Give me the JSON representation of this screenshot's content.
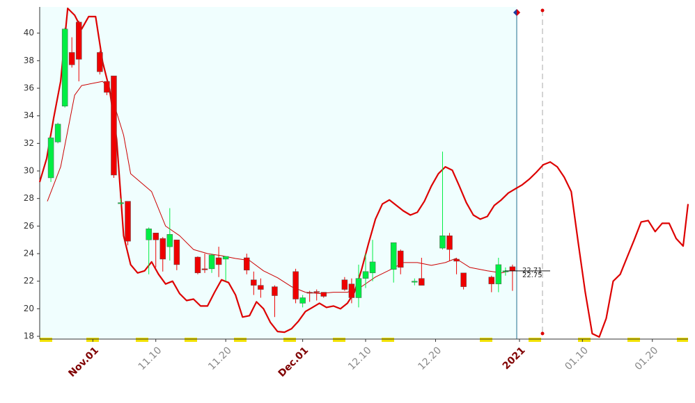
{
  "chart_data": {
    "type": "candlestick",
    "x": [
      -6,
      -5,
      -4,
      -3,
      -2,
      1,
      2,
      3,
      4,
      5,
      8,
      9,
      10,
      11,
      12,
      15,
      16,
      17,
      18,
      19,
      22,
      23,
      24,
      26,
      29,
      30,
      31,
      32,
      33,
      36,
      37,
      38,
      39,
      40,
      43,
      44,
      46,
      47,
      50,
      51,
      52,
      53,
      57,
      58,
      59,
      60
    ],
    "open": [
      29.5,
      32.1,
      34.7,
      38.6,
      40.8,
      38.6,
      36.5,
      36.9,
      27.7,
      27.8,
      25.0,
      25.5,
      25.1,
      24.5,
      25.0,
      23.75,
      22.9,
      22.9,
      23.7,
      23.6,
      23.7,
      22.1,
      21.7,
      21.6,
      22.7,
      20.4,
      21.2,
      21.25,
      21.2,
      22.1,
      21.8,
      20.8,
      22.2,
      22.6,
      22.85,
      24.2,
      22.0,
      22.2,
      24.4,
      25.3,
      23.6,
      22.6,
      22.3,
      21.8,
      22.7,
      23.05
    ],
    "high": [
      32.5,
      33.5,
      40.4,
      39.7,
      40.9,
      38.7,
      36.5,
      36.9,
      28.0,
      27.8,
      25.9,
      25.5,
      25.2,
      27.3,
      25.0,
      23.8,
      24.0,
      24.0,
      24.5,
      23.8,
      24.0,
      22.7,
      22.2,
      21.7,
      22.9,
      21.0,
      21.3,
      21.4,
      21.2,
      22.3,
      22.2,
      23.2,
      24.0,
      25.0,
      24.8,
      24.3,
      22.2,
      23.7,
      31.4,
      25.5,
      23.7,
      22.6,
      22.4,
      23.7,
      23.0,
      23.2
    ],
    "low": [
      29.2,
      32.0,
      34.6,
      37.5,
      36.5,
      37.0,
      35.5,
      29.5,
      27.5,
      24.6,
      22.5,
      23.0,
      22.7,
      23.5,
      22.8,
      22.5,
      22.6,
      22.6,
      22.3,
      22.0,
      22.5,
      21.0,
      20.8,
      19.4,
      20.4,
      20.1,
      20.5,
      20.6,
      20.8,
      21.3,
      20.4,
      20.1,
      21.5,
      22.0,
      21.9,
      22.5,
      21.7,
      21.7,
      24.3,
      23.5,
      22.5,
      21.4,
      21.2,
      21.2,
      22.4,
      21.3
    ],
    "close": [
      32.4,
      33.4,
      40.3,
      37.7,
      38.1,
      37.2,
      35.7,
      29.7,
      27.7,
      24.9,
      25.8,
      25.0,
      23.6,
      25.4,
      23.2,
      22.6,
      22.85,
      23.9,
      23.2,
      23.8,
      22.8,
      21.7,
      21.4,
      20.95,
      20.7,
      20.8,
      21.15,
      21.2,
      20.9,
      21.4,
      20.8,
      22.2,
      22.7,
      23.4,
      24.8,
      23.0,
      22.0,
      21.7,
      25.3,
      24.3,
      23.45,
      21.6,
      21.8,
      23.2,
      22.75,
      22.75
    ],
    "up_color": "#00ee44",
    "down_color": "#ee0000",
    "lines": [
      {
        "color": "#dd0000",
        "x": [
          -7.6,
          -6.6,
          -5.6,
          -4.6,
          -3.6,
          -2.6,
          -1.6,
          -0.6,
          0.4,
          1.4,
          2.4,
          3.4,
          4.4,
          5.4,
          6.4,
          7.4,
          8.4,
          9.4,
          10.4,
          11.4,
          12.4,
          13.4,
          14.4,
          15.4,
          16.4,
          17.4,
          18.4,
          19.4,
          20.4,
          21.4,
          22.4,
          23.4,
          24.4,
          25.4,
          26.4,
          27.4,
          28.4,
          29.4,
          30.4,
          31.4,
          32.4,
          33.4,
          34.4,
          35.4,
          36.4,
          37.4,
          38.4,
          39.4,
          40.4,
          41.4,
          42.4,
          43.4,
          44.4,
          45.4,
          46.4,
          47.4,
          48.4,
          49.4,
          50.4,
          51.4,
          52.4,
          53.4,
          54.4,
          55.4,
          56.4,
          57.4,
          58.4,
          59.4,
          60.4,
          61.4,
          62.4,
          63.4,
          64.4,
          65.4,
          66.4,
          67.4,
          68.4,
          69.4,
          70.4,
          71.4,
          72.4,
          73.4,
          74.4,
          75.4,
          76.4,
          77.4,
          78.4,
          79.4,
          80.4,
          81.4,
          82.4,
          83.4,
          84.4,
          85.1
        ],
        "values": [
          29.2,
          30.9,
          33.85,
          36.5,
          41.8,
          41.3,
          40.3,
          41.2,
          41.2,
          37.9,
          35.9,
          32.3,
          25.3,
          23.2,
          22.6,
          22.75,
          23.4,
          22.5,
          21.8,
          22.0,
          21.1,
          20.6,
          20.7,
          20.2,
          20.2,
          21.2,
          22.1,
          21.9,
          21.0,
          19.4,
          19.5,
          20.5,
          20.0,
          19.0,
          18.35,
          18.3,
          18.55,
          19.1,
          19.8,
          20.1,
          20.4,
          20.1,
          20.2,
          20.0,
          20.4,
          21.2,
          22.8,
          24.7,
          26.5,
          27.6,
          27.9,
          27.5,
          27.1,
          26.8,
          27.0,
          27.8,
          28.9,
          29.8,
          30.3,
          30.05,
          28.9,
          27.7,
          26.8,
          26.5,
          26.7,
          27.5,
          27.9,
          28.4,
          28.7,
          29.0,
          29.4,
          29.9,
          30.45,
          30.65,
          30.3,
          29.55,
          28.5,
          24.8,
          21.2,
          18.2,
          17.95,
          19.3,
          22.0,
          22.5,
          23.75,
          25.0,
          26.3,
          26.4,
          25.6,
          26.2,
          26.2,
          25.1,
          24.55,
          27.6
        ]
      },
      {
        "color": "#cc0000",
        "x": [
          -6.5,
          -4.6,
          -2.6,
          -1.6,
          1.4,
          2.4,
          4.4,
          5.4,
          8.4,
          10.4,
          12.4,
          14.4,
          16.4,
          18.4,
          20.4,
          22.4,
          24.4,
          26.4,
          28.4,
          30.4,
          32.4,
          34.4,
          36.4,
          38.4,
          40.4,
          42.4,
          44.4,
          46.4,
          48.4,
          50.4,
          51.9,
          53.9,
          56.4,
          58.4,
          60.4
        ],
        "values": [
          27.8,
          30.3,
          35.5,
          36.2,
          36.5,
          35.9,
          32.6,
          29.8,
          28.5,
          26.0,
          25.3,
          24.3,
          24.0,
          23.85,
          23.65,
          23.5,
          22.75,
          22.25,
          21.6,
          21.2,
          21.1,
          21.2,
          21.2,
          21.6,
          22.3,
          22.8,
          23.35,
          23.35,
          23.15,
          23.35,
          23.65,
          23.0,
          22.75,
          22.6,
          22.85
        ]
      }
    ],
    "price_labels": [
      22.71,
      22.75
    ],
    "xlim": [
      -7.6,
      85.1
    ],
    "ylim": [
      17.8,
      41.9
    ],
    "xticks": [
      {
        "value": 0,
        "label": "Nov.01"
      },
      {
        "value": 9,
        "label": "11.10"
      },
      {
        "value": 19,
        "label": "11.20"
      },
      {
        "value": 30,
        "label": "Dec.01"
      },
      {
        "value": 39,
        "label": "12.10"
      },
      {
        "value": 49,
        "label": "12.20"
      },
      {
        "value": 61,
        "label": "2021"
      },
      {
        "value": 70,
        "label": "01.10"
      },
      {
        "value": 80,
        "label": "01.20"
      }
    ],
    "yticks": [
      18,
      20,
      22,
      24,
      26,
      28,
      30,
      32,
      34,
      36,
      38,
      40
    ]
  }
}
